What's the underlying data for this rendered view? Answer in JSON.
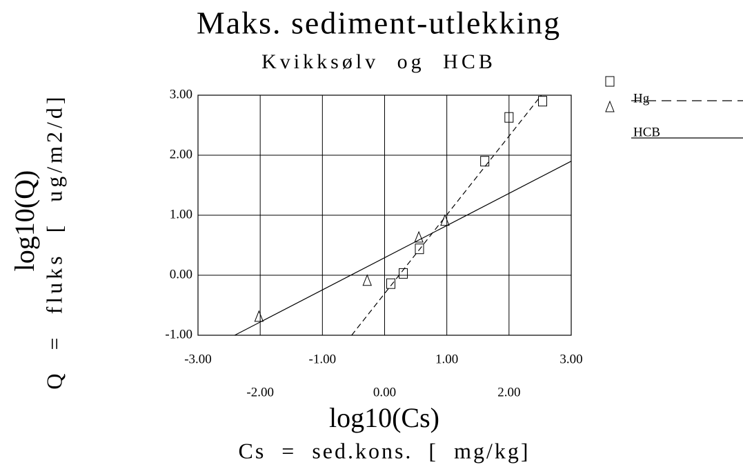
{
  "chart_data": {
    "type": "scatter",
    "title": "Maks. sediment-utlekking",
    "subtitle": "Kvikksølv og HCB",
    "x_label": "log10(Cs)",
    "x_label_2": "Cs = sed.kons. [ mg/kg]",
    "y_label": "log10(Q)",
    "y_label_2": "Q = fluks [ ug/m2/d]",
    "xlim": [
      -3,
      3
    ],
    "ylim": [
      -1,
      3
    ],
    "xticks": [
      {
        "value": -3,
        "label": "-3.00"
      },
      {
        "value": -2,
        "label": "-2.00"
      },
      {
        "value": -1,
        "label": "-1.00"
      },
      {
        "value": 0,
        "label": "0.00"
      },
      {
        "value": 1,
        "label": "1.00"
      },
      {
        "value": 2,
        "label": "2.00"
      },
      {
        "value": 3,
        "label": "3.00"
      }
    ],
    "yticks": [
      {
        "value": -1,
        "label": "-1.00"
      },
      {
        "value": 0,
        "label": "0.00"
      },
      {
        "value": 1,
        "label": "1.00"
      },
      {
        "value": 2,
        "label": "2.00"
      },
      {
        "value": 3,
        "label": "3.00"
      }
    ],
    "grid": true,
    "series": [
      {
        "name": "Hg",
        "color": "#000000",
        "marker": "square",
        "line": "dashed",
        "x": [
          0.1,
          0.3,
          0.56,
          1.61,
          2.0,
          2.54
        ],
        "values": [
          -0.14,
          0.03,
          0.44,
          1.9,
          2.63,
          2.9
        ],
        "fit_x": [
          -0.53,
          2.52
        ],
        "fit_y": [
          -1,
          3
        ]
      },
      {
        "name": "HCB",
        "color": "#000000",
        "marker": "triangle",
        "line": "solid",
        "x": [
          -2.02,
          -0.28,
          0.55,
          0.97
        ],
        "values": [
          -0.7,
          -0.1,
          0.62,
          0.9
        ],
        "fit_x": [
          -2.41,
          3
        ],
        "fit_y": [
          -1,
          1.9
        ]
      }
    ]
  }
}
